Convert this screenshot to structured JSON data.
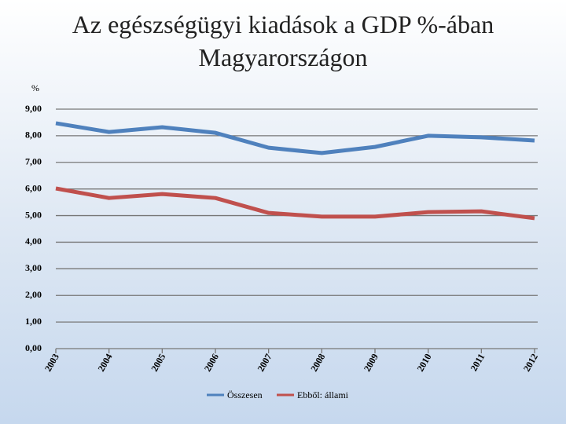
{
  "chart_data": {
    "type": "line",
    "title": "Az egészségügyi kiadások a GDP %-ában Magyarországon",
    "y_label": "%",
    "categories": [
      "2003",
      "2004",
      "2005",
      "2006",
      "2007",
      "2008",
      "2009",
      "2010",
      "2011",
      "2012"
    ],
    "series": [
      {
        "name": "Összesen",
        "color": "#4f81bd",
        "values": [
          8.47,
          8.14,
          8.32,
          8.11,
          7.55,
          7.35,
          7.58,
          8.0,
          7.94,
          7.82
        ]
      },
      {
        "name": "Ebből: állami",
        "color": "#c0504d",
        "values": [
          6.02,
          5.66,
          5.81,
          5.66,
          5.1,
          4.96,
          4.96,
          5.13,
          5.16,
          4.9
        ]
      }
    ],
    "ylim": [
      0,
      9
    ],
    "yticks": [
      {
        "value": 0,
        "label": "0,00"
      },
      {
        "value": 1,
        "label": "1,00"
      },
      {
        "value": 2,
        "label": "2,00"
      },
      {
        "value": 3,
        "label": "3,00"
      },
      {
        "value": 4,
        "label": "4,00"
      },
      {
        "value": 5,
        "label": "5,00"
      },
      {
        "value": 6,
        "label": "6,00"
      },
      {
        "value": 7,
        "label": "7,00"
      },
      {
        "value": 8,
        "label": "8,00"
      },
      {
        "value": 9,
        "label": "9,00"
      }
    ],
    "grid": true
  }
}
